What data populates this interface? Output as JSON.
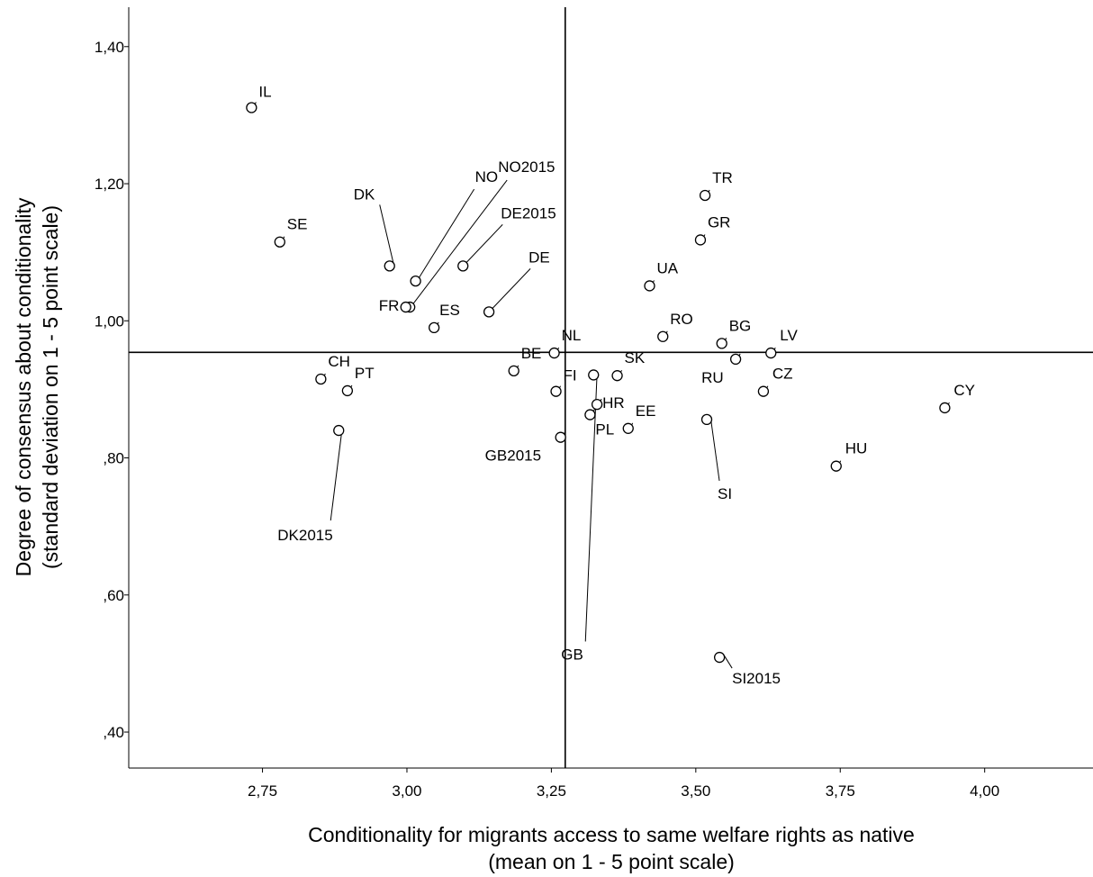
{
  "chart_data": {
    "type": "scatter",
    "title": "",
    "xlabel": [
      "Conditionality for migrants access to same welfare rights as native",
      "(mean on 1 - 5 point scale)"
    ],
    "ylabel": [
      "Degree of consensus about conditionality",
      "(standard deviation on 1 - 5 point scale)"
    ],
    "xlim": [
      2.5185,
      4.1875
    ],
    "ylim": [
      0.3475,
      1.4575
    ],
    "x_ticks": [
      2.75,
      3.0,
      3.25,
      3.5,
      3.75,
      4.0
    ],
    "x_tick_labels": [
      "2,75",
      "3,00",
      "3,25",
      "3,50",
      "3,75",
      "4,00"
    ],
    "y_ticks": [
      0.4,
      0.6,
      0.8,
      1.0,
      1.2,
      1.4
    ],
    "y_tick_labels": [
      ",40",
      ",60",
      ",80",
      "1,00",
      "1,20",
      "1,40"
    ],
    "reference_lines": {
      "x": 3.274,
      "y": 0.954
    },
    "grid": false,
    "legend": "none",
    "points": [
      {
        "label": "IL",
        "x": 2.731,
        "y": 1.311
      },
      {
        "label": "SE",
        "x": 2.78,
        "y": 1.115
      },
      {
        "label": "DK",
        "x": 2.97,
        "y": 1.08
      },
      {
        "label": "NO",
        "x": 3.015,
        "y": 1.058
      },
      {
        "label": "NO2015",
        "x": 3.005,
        "y": 1.02
      },
      {
        "label": "FR",
        "x": 2.998,
        "y": 1.02
      },
      {
        "label": "DE2015",
        "x": 3.097,
        "y": 1.08
      },
      {
        "label": "DE",
        "x": 3.142,
        "y": 1.013
      },
      {
        "label": "ES",
        "x": 3.047,
        "y": 0.99
      },
      {
        "label": "CH",
        "x": 2.851,
        "y": 0.915
      },
      {
        "label": "PT",
        "x": 2.897,
        "y": 0.898
      },
      {
        "label": "DK2015",
        "x": 2.882,
        "y": 0.84
      },
      {
        "label": "BE",
        "x": 3.185,
        "y": 0.927
      },
      {
        "label": "NL",
        "x": 3.255,
        "y": 0.953
      },
      {
        "label": "FI",
        "x": 3.258,
        "y": 0.897
      },
      {
        "label": "GB2015",
        "x": 3.266,
        "y": 0.83
      },
      {
        "label": "GB",
        "x": 3.323,
        "y": 0.921
      },
      {
        "label": "HR",
        "x": 3.329,
        "y": 0.878
      },
      {
        "label": "PL",
        "x": 3.317,
        "y": 0.863
      },
      {
        "label": "SK",
        "x": 3.364,
        "y": 0.92
      },
      {
        "label": "EE",
        "x": 3.383,
        "y": 0.843
      },
      {
        "label": "UA",
        "x": 3.42,
        "y": 1.051
      },
      {
        "label": "RO",
        "x": 3.443,
        "y": 0.977
      },
      {
        "label": "TR",
        "x": 3.516,
        "y": 1.183
      },
      {
        "label": "GR",
        "x": 3.508,
        "y": 1.118
      },
      {
        "label": "BG",
        "x": 3.545,
        "y": 0.967
      },
      {
        "label": "RU",
        "x": 3.569,
        "y": 0.944
      },
      {
        "label": "LV",
        "x": 3.63,
        "y": 0.953
      },
      {
        "label": "CZ",
        "x": 3.617,
        "y": 0.897
      },
      {
        "label": "SI",
        "x": 3.519,
        "y": 0.856
      },
      {
        "label": "SI2015",
        "x": 3.541,
        "y": 0.509
      },
      {
        "label": "HU",
        "x": 3.743,
        "y": 0.788
      },
      {
        "label": "CY",
        "x": 3.931,
        "y": 0.873
      }
    ]
  }
}
